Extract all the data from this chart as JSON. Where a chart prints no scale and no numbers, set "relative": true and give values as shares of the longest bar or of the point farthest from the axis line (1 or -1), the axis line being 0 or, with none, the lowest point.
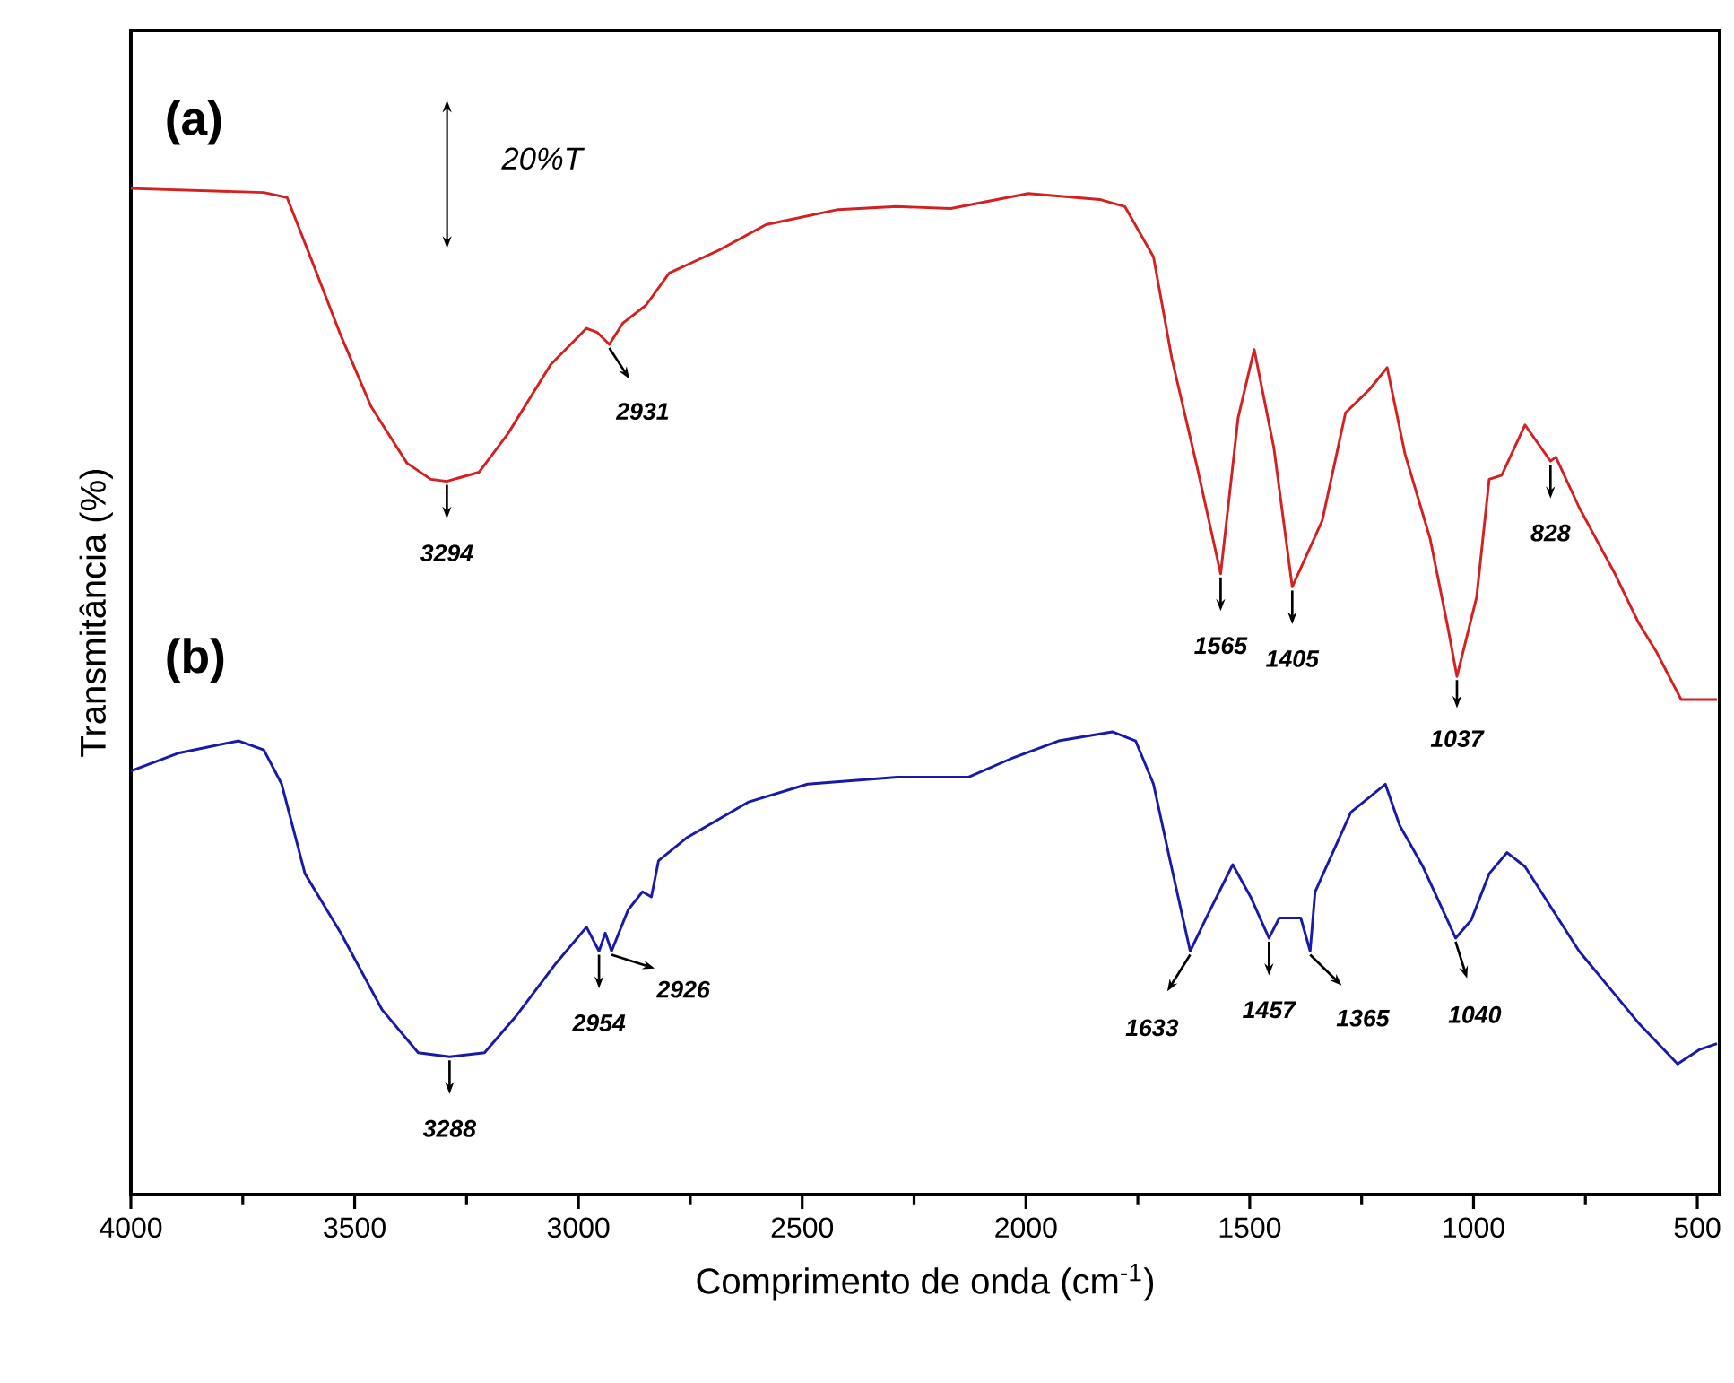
{
  "chart_data": {
    "type": "line",
    "relative": true,
    "xlabel": "Comprimento de onda (cm$^{-1}$)",
    "ylabel": "Transmitância (%)",
    "xlim": [
      4000,
      450
    ],
    "xticks": [
      4000,
      3500,
      3000,
      2500,
      2000,
      1500,
      1000,
      500
    ],
    "series": [
      {
        "color": "#d42020",
        "x": [
          4000,
          3703,
          3651,
          3599,
          3531,
          3463,
          3383,
          3330,
          3294,
          3222,
          3158,
          3062,
          2982,
          2958,
          2931,
          2901,
          2849,
          2797,
          2689,
          2581,
          2420,
          2288,
          2168,
          1995,
          1835,
          1779,
          1715,
          1674,
          1618,
          1565,
          1526,
          1490,
          1446,
          1405,
          1338,
          1286,
          1233,
          1193,
          1153,
          1097,
          1057,
          1037,
          993,
          965,
          937,
          885,
          828,
          816,
          764,
          684,
          632,
          592,
          536,
          456
        ],
        "values": [
          1.0,
          0.996,
          0.991,
          0.932,
          0.854,
          0.783,
          0.727,
          0.711,
          0.709,
          0.718,
          0.756,
          0.825,
          0.861,
          0.857,
          0.845,
          0.866,
          0.884,
          0.916,
          0.938,
          0.964,
          0.979,
          0.982,
          0.98,
          0.995,
          0.989,
          0.982,
          0.932,
          0.831,
          0.724,
          0.617,
          0.772,
          0.84,
          0.742,
          0.604,
          0.67,
          0.777,
          0.8,
          0.822,
          0.736,
          0.652,
          0.563,
          0.515,
          0.594,
          0.711,
          0.715,
          0.765,
          0.729,
          0.733,
          0.683,
          0.617,
          0.569,
          0.54,
          0.492,
          0.492
        ]
      },
      {
        "color": "#1a1aa8",
        "x": [
          4000,
          3892,
          3759,
          3703,
          3663,
          3611,
          3531,
          3439,
          3358,
          3288,
          3210,
          3142,
          3050,
          2982,
          2954,
          2940,
          2926,
          2889,
          2857,
          2837,
          2821,
          2757,
          2621,
          2488,
          2288,
          2128,
          2035,
          1927,
          1807,
          1755,
          1715,
          1678,
          1633,
          1594,
          1538,
          1498,
          1457,
          1434,
          1386,
          1365,
          1354,
          1274,
          1197,
          1165,
          1113,
          1040,
          1005,
          965,
          925,
          885,
          764,
          632,
          544,
          496,
          456
        ],
        "values": [
          0.421,
          0.439,
          0.451,
          0.442,
          0.408,
          0.319,
          0.26,
          0.184,
          0.141,
          0.137,
          0.141,
          0.176,
          0.23,
          0.266,
          0.242,
          0.26,
          0.242,
          0.283,
          0.301,
          0.296,
          0.332,
          0.355,
          0.39,
          0.408,
          0.415,
          0.415,
          0.433,
          0.451,
          0.46,
          0.451,
          0.408,
          0.332,
          0.242,
          0.278,
          0.328,
          0.296,
          0.255,
          0.275,
          0.275,
          0.242,
          0.301,
          0.38,
          0.408,
          0.367,
          0.326,
          0.255,
          0.273,
          0.319,
          0.34,
          0.326,
          0.242,
          0.171,
          0.13,
          0.144,
          0.15
        ]
      }
    ],
    "annotations": [
      "(a)",
      "(b)",
      "20%T",
      {
        "text": "3294",
        "x": 3294,
        "y": 0.709
      },
      {
        "text": "2931",
        "x": 2931,
        "y": 0.845
      },
      {
        "text": "1565",
        "x": 1565,
        "y": 0.617
      },
      {
        "text": "1405",
        "x": 1405,
        "y": 0.604
      },
      {
        "text": "1037",
        "x": 1037,
        "y": 0.515
      },
      {
        "text": "828",
        "x": 828,
        "y": 0.729
      },
      {
        "text": "3288",
        "x": 3288,
        "y": 0.137
      },
      {
        "text": "2954",
        "x": 2954,
        "y": 0.242
      },
      {
        "text": "2926",
        "x": 2926,
        "y": 0.242
      },
      {
        "text": "1633",
        "x": 1633,
        "y": 0.242
      },
      {
        "text": "1457",
        "x": 1457,
        "y": 0.255
      },
      {
        "text": "1365",
        "x": 1365,
        "y": 0.242
      },
      {
        "text": "1040",
        "x": 1040,
        "y": 0.255
      }
    ]
  }
}
